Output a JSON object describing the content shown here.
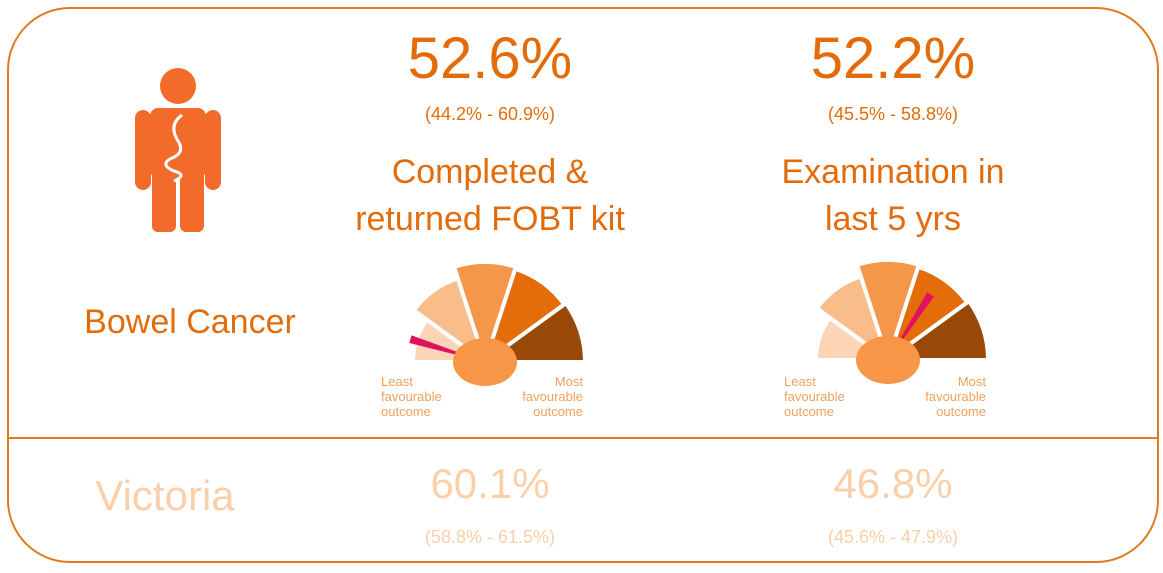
{
  "topic": "Bowel Cancer",
  "indicators": [
    {
      "value": "52.6%",
      "ci": "(44.2% - 60.9%)",
      "label_lines": [
        "Completed &",
        "returned FOBT kit"
      ],
      "gauge": {
        "low_lines": [
          "Least",
          "favourable",
          "outcome"
        ],
        "high_lines": [
          "Most",
          "favourable",
          "outcome"
        ]
      }
    },
    {
      "value": "52.2%",
      "ci": "(45.5% - 58.8%)",
      "label_lines": [
        "Examination in",
        "last 5 yrs"
      ],
      "gauge": {
        "low_lines": [
          "Least",
          "favourable",
          "outcome"
        ],
        "high_lines": [
          "Most",
          "favourable",
          "outcome"
        ]
      }
    }
  ],
  "comparison": {
    "region": "Victoria",
    "values": [
      {
        "value": "60.1%",
        "ci": "(58.8% - 61.5%)"
      },
      {
        "value": "46.8%",
        "ci": "(45.6% - 47.9%)"
      }
    ]
  }
}
